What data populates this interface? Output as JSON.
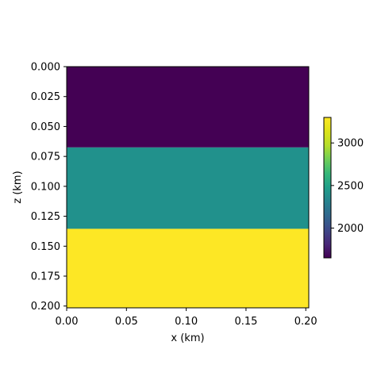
{
  "chart_data": {
    "type": "heatmap",
    "title": "",
    "xlabel": "x (km)",
    "ylabel": "z (km)",
    "xlim": [
      0.0,
      0.2025
    ],
    "ylim": [
      0.2015,
      0.0
    ],
    "y_inverted": true,
    "grid": false,
    "colormap": "viridis",
    "x_ticks": [
      "0.00",
      "0.05",
      "0.10",
      "0.15",
      "0.20"
    ],
    "y_ticks": [
      "0.000",
      "0.025",
      "0.050",
      "0.075",
      "0.100",
      "0.125",
      "0.150",
      "0.175",
      "0.200"
    ],
    "layers": [
      {
        "z_top": 0.0,
        "z_bottom": 0.0675,
        "value": 1650,
        "color": "#440154"
      },
      {
        "z_top": 0.0675,
        "z_bottom": 0.1355,
        "value": 2475,
        "color": "#21918c"
      },
      {
        "z_top": 0.1355,
        "z_bottom": 0.2015,
        "value": 3300,
        "color": "#fde725"
      }
    ],
    "colorbar": {
      "placement": "right",
      "min": 1650,
      "max": 3300,
      "ticks": [
        2000,
        2500,
        3000
      ],
      "tick_labels": [
        "2000",
        "2500",
        "3000"
      ]
    }
  }
}
